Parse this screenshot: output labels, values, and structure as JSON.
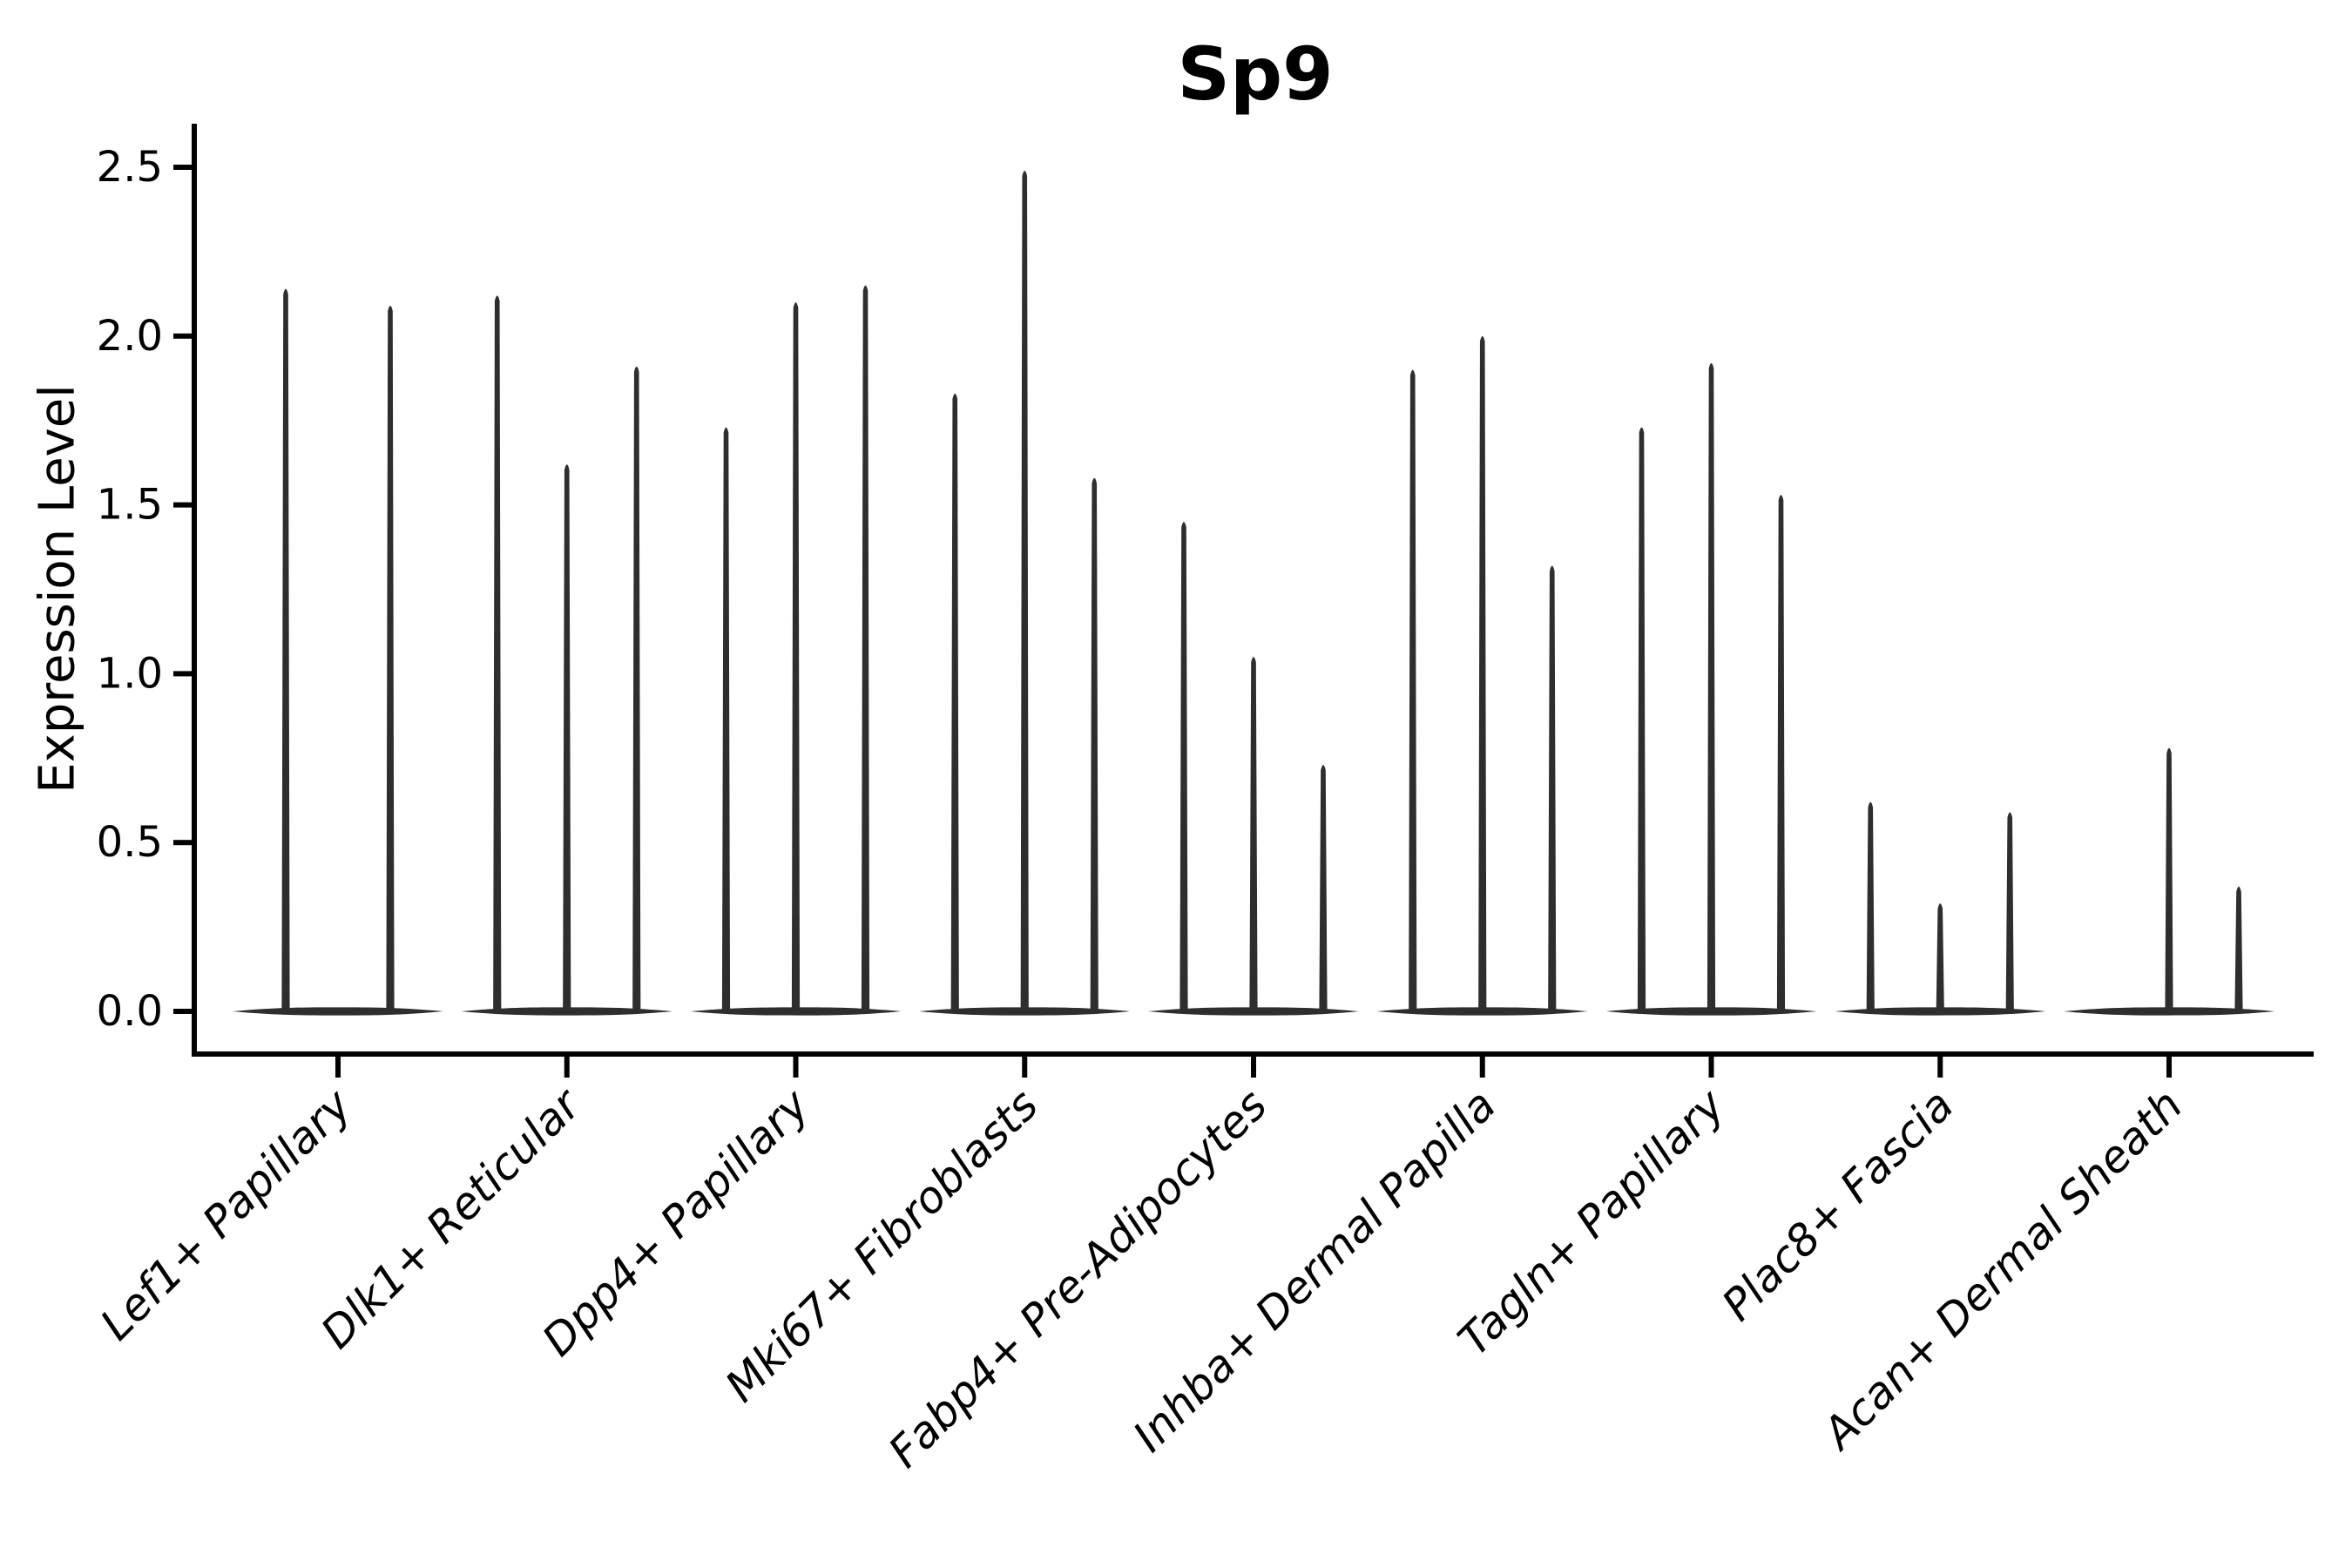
{
  "title": "Sp9",
  "y_axis": {
    "label": "Expression Level"
  },
  "chart_data": {
    "type": "violin",
    "title": "Sp9",
    "xlabel": "",
    "ylabel": "Expression Level",
    "grid": false,
    "legend": "none",
    "background_color": "#ffffff",
    "violin_color": "#2e2e2e",
    "axis_color": "#000000",
    "ylim": [
      -0.13,
      2.63
    ],
    "ytick_values": [
      0.0,
      0.5,
      1.0,
      1.5,
      2.0,
      2.5
    ],
    "ytick_labels": [
      "0.0",
      "0.5",
      "1.0",
      "1.5",
      "2.0",
      "2.5"
    ],
    "categories": [
      "Lef1+ Papillary",
      "Dlk1+ Reticular",
      "Dpp4+ Papillary",
      "Mki67+ Fibroblasts",
      "Fabp4+ Pre-Adipocytes",
      "Inhba+ Dermal Papilla",
      "Tagln+ Papillary",
      "Plac8+ Fascia",
      "Acan+ Dermal Sheath"
    ],
    "groups": [
      {
        "category": "Lef1+ Papillary",
        "n_slots": 2,
        "violins": [
          {
            "slot": 0,
            "max": 2.15
          },
          {
            "slot": 1,
            "max": 2.1
          }
        ]
      },
      {
        "category": "Dlk1+ Reticular",
        "n_slots": 3,
        "violins": [
          {
            "slot": 0,
            "max": 2.13
          },
          {
            "slot": 1,
            "max": 1.63
          },
          {
            "slot": 2,
            "max": 1.92
          }
        ]
      },
      {
        "category": "Dpp4+ Papillary",
        "n_slots": 3,
        "violins": [
          {
            "slot": 0,
            "max": 1.74
          },
          {
            "slot": 1,
            "max": 2.11
          },
          {
            "slot": 2,
            "max": 2.16
          }
        ]
      },
      {
        "category": "Mki67+ Fibroblasts",
        "n_slots": 3,
        "violins": [
          {
            "slot": 0,
            "max": 1.84
          },
          {
            "slot": 1,
            "max": 2.5
          },
          {
            "slot": 2,
            "max": 1.59
          }
        ]
      },
      {
        "category": "Fabp4+ Pre-Adipocytes",
        "n_slots": 3,
        "violins": [
          {
            "slot": 0,
            "max": 1.46
          },
          {
            "slot": 1,
            "max": 1.06
          },
          {
            "slot": 2,
            "max": 0.74
          }
        ]
      },
      {
        "category": "Inhba+ Dermal Papilla",
        "n_slots": 3,
        "violins": [
          {
            "slot": 0,
            "max": 1.91
          },
          {
            "slot": 1,
            "max": 2.01
          },
          {
            "slot": 2,
            "max": 1.33
          }
        ]
      },
      {
        "category": "Tagln+ Papillary",
        "n_slots": 3,
        "violins": [
          {
            "slot": 0,
            "max": 1.74
          },
          {
            "slot": 1,
            "max": 1.93
          },
          {
            "slot": 2,
            "max": 1.54
          }
        ]
      },
      {
        "category": "Plac8+ Fascia",
        "n_slots": 3,
        "violins": [
          {
            "slot": 0,
            "max": 0.63
          },
          {
            "slot": 1,
            "max": 0.33
          },
          {
            "slot": 2,
            "max": 0.6
          }
        ]
      },
      {
        "category": "Acan+ Dermal Sheath",
        "n_slots": 3,
        "violins": [
          {
            "slot": 0,
            "max": 0.0
          },
          {
            "slot": 1,
            "max": 0.79
          },
          {
            "slot": 2,
            "max": 0.38
          }
        ]
      }
    ]
  }
}
